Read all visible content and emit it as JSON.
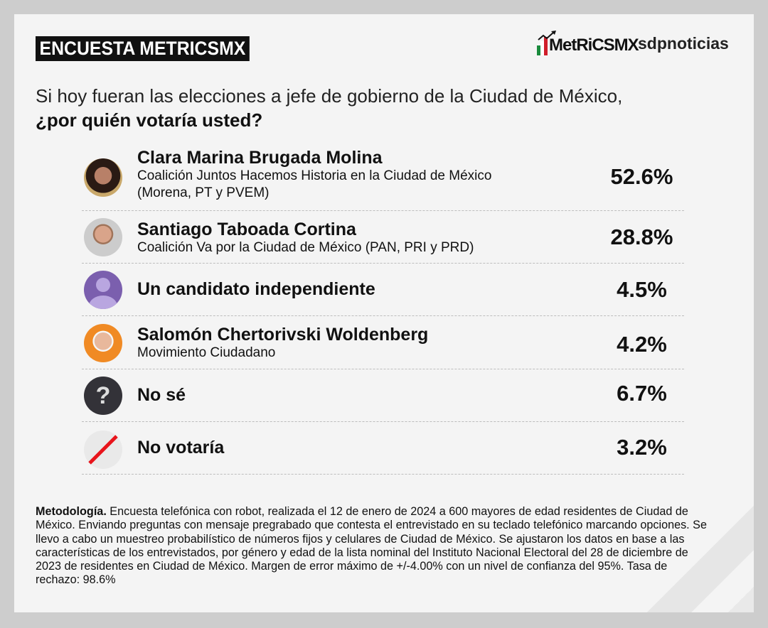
{
  "header": {
    "badge": "ENCUESTA METRICSMX",
    "logo_metrics": "MetRiCSMX",
    "logo_sdp": "sdpnoticias"
  },
  "question": {
    "line1": "Si hoy fueran las elecciones a jefe de gobierno de la Ciudad de México,",
    "line2": "¿por quién votaría usted?"
  },
  "results": [
    {
      "name": "Clara Marina Brugada Molina",
      "sub1": "Coalición Juntos Hacemos Historia en la Ciudad de México",
      "sub2": "(Morena, PT y PVEM)",
      "pct": "52.6%",
      "value": 52.6
    },
    {
      "name": "Santiago Taboada Cortina",
      "sub1": "Coalición Va por la Ciudad de México (PAN, PRI y PRD)",
      "pct": "28.8%",
      "value": 28.8
    },
    {
      "name": "Un candidato independiente",
      "pct": "4.5%",
      "value": 4.5
    },
    {
      "name": "Salomón Chertorivski Woldenberg",
      "sub1": "Movimiento Ciudadano",
      "pct": "4.2%",
      "value": 4.2
    },
    {
      "name": "No sé",
      "pct": "6.7%",
      "value": 6.7
    },
    {
      "name": "No votaría",
      "pct": "3.2%",
      "value": 3.2
    }
  ],
  "methodology": {
    "label": "Metodología.",
    "text": " Encuesta telefónica con robot, realizada el 12 de enero de 2024 a 600 mayores de edad residentes de Ciudad de México. Enviando preguntas con mensaje pregrabado que contesta el entrevistado en su teclado telefónico marcando opciones. Se llevo a cabo un muestreo probabilístico de números fijos y celulares de Ciudad de México. Se ajustaron los datos en base a las características de los entrevistados, por género y edad de la lista nominal del Instituto Nacional Electoral del 28 de diciembre de 2023 de residentes en Ciudad de México. Margen de error máximo de +/-4.00% con un nivel de confianza del 95%. Tasa de rechazo: 98.6%"
  },
  "colors": {
    "independent": "#7b5fae",
    "nose": "#333238",
    "slash": "#e8141b",
    "salomon_bg": "#f08a24"
  }
}
